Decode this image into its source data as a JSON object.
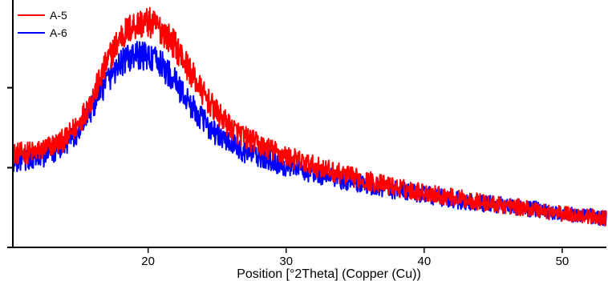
{
  "chart_data": {
    "type": "line",
    "title": "",
    "xlabel": "Position [°2Theta] (Copper (Cu))",
    "ylabel": "",
    "xlim": [
      10.2,
      53.2
    ],
    "ylim": [
      0,
      100
    ],
    "x_ticks": [
      20,
      30,
      40,
      50
    ],
    "x_tick_labels": [
      "20",
      "30",
      "40",
      "50"
    ],
    "y_ticks": [
      0,
      33.3,
      66.7
    ],
    "grid": false,
    "legend_position": "top-left",
    "series": [
      {
        "name": "A-5",
        "color": "#ff0000",
        "x": [
          10.2,
          12,
          14,
          15,
          16,
          17,
          18,
          19,
          20,
          21,
          22,
          23,
          24,
          25,
          26,
          27,
          28,
          30,
          32,
          35,
          38,
          40,
          42,
          45,
          48,
          50,
          52,
          53.2
        ],
        "y": [
          39,
          40,
          45,
          52,
          63,
          77,
          88,
          93,
          94,
          91,
          84,
          74,
          64,
          56,
          50,
          46,
          43,
          38,
          34,
          29,
          25,
          23,
          21,
          18,
          16,
          14,
          13,
          12
        ]
      },
      {
        "name": "A-6",
        "color": "#0000ff",
        "x": [
          10.2,
          12,
          14,
          15,
          16,
          17,
          18,
          19,
          20,
          21,
          22,
          23,
          24,
          25,
          26,
          27,
          28,
          30,
          32,
          35,
          38,
          40,
          42,
          45,
          48,
          50,
          52,
          53.2
        ],
        "y": [
          36,
          37,
          42,
          49,
          59,
          70,
          77,
          80,
          80,
          76,
          69,
          60,
          53,
          47,
          43,
          40,
          38,
          34,
          31,
          27,
          24,
          22,
          20,
          18,
          16,
          14,
          13,
          12
        ]
      }
    ]
  }
}
